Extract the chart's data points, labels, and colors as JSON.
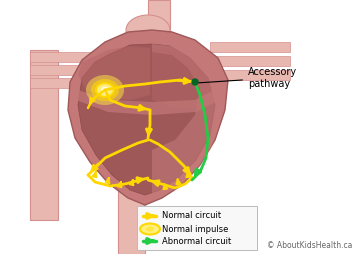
{
  "bg_color": "#ffffff",
  "heart_outer": "#d4908a",
  "heart_mid": "#c47878",
  "heart_dark": "#9e5858",
  "heart_chamber": "#b86868",
  "vessel_light": "#e8b8b0",
  "vessel_mid": "#d49090",
  "vessel_dark": "#c07878",
  "yellow": "#FFD700",
  "yellow_light": "#FFF080",
  "yellow_mid": "#FFE840",
  "green": "#22CC44",
  "green_dark": "#006622",
  "annotation_label": "Accessory\npathway",
  "legend_items": [
    {
      "label": "Normal circuit",
      "color": "#FFD700",
      "type": "arrow"
    },
    {
      "label": "Normal impulse",
      "color": "#FFD700",
      "type": "oval"
    },
    {
      "label": "Abnormal circuit",
      "color": "#22CC44",
      "type": "arrow"
    }
  ],
  "copyright": "© AboutKidsHealth.ca",
  "fig_width": 3.56,
  "fig_height": 2.54,
  "dpi": 100
}
